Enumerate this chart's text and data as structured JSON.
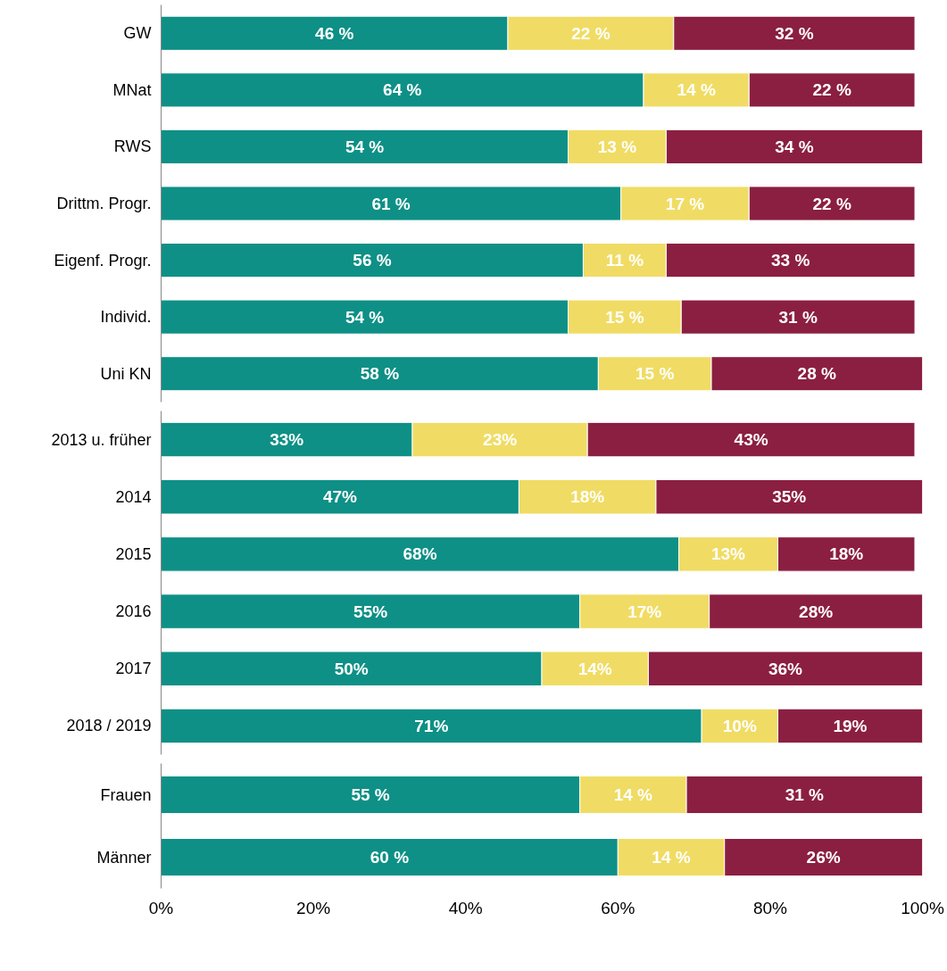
{
  "chart_data": [
    {
      "type": "bar",
      "orientation": "horizontal",
      "stacked": true,
      "tick_labels": "y",
      "xlim": [
        0,
        101
      ],
      "categories": [
        "GW",
        "MNat",
        "RWS",
        "Drittm. Progr.",
        "Eigenf. Progr.",
        "Individ.",
        "Uni KN"
      ],
      "series": [
        {
          "color": "#0e9086",
          "values": [
            46,
            64,
            54,
            61,
            56,
            54,
            58
          ],
          "value_labels": [
            "46 %",
            "64 %",
            "54 %",
            "61 %",
            "56 %",
            "54 %",
            "58 %"
          ]
        },
        {
          "color": "#f0dc64",
          "values": [
            22,
            14,
            13,
            17,
            11,
            15,
            15
          ],
          "value_labels": [
            "22 %",
            "14 %",
            "13 %",
            "17 %",
            "11 %",
            "15 %",
            "15 %"
          ]
        },
        {
          "color": "#8b1f41",
          "values": [
            32,
            22,
            34,
            22,
            33,
            31,
            28
          ],
          "value_labels": [
            "32 %",
            "22 %",
            "34 %",
            "22 %",
            "33 %",
            "31 %",
            "28 %"
          ]
        }
      ]
    },
    {
      "type": "bar",
      "orientation": "horizontal",
      "stacked": true,
      "tick_labels": "y",
      "xlim": [
        0,
        100
      ],
      "categories": [
        "2013 u. früher",
        "2014",
        "2015",
        "2016",
        "2017",
        "2018 / 2019"
      ],
      "series": [
        {
          "color": "#0e9086",
          "values": [
            33,
            47,
            68,
            55,
            50,
            71
          ],
          "value_labels": [
            "33%",
            "47%",
            "68%",
            "55%",
            "50%",
            "71%"
          ]
        },
        {
          "color": "#f0dc64",
          "values": [
            23,
            18,
            13,
            17,
            14,
            10
          ],
          "value_labels": [
            "23%",
            "18%",
            "13%",
            "17%",
            "14%",
            "10%"
          ]
        },
        {
          "color": "#8b1f41",
          "values": [
            43,
            35,
            18,
            28,
            36,
            19
          ],
          "value_labels": [
            "43%",
            "35%",
            "18%",
            "28%",
            "36%",
            "19%"
          ]
        }
      ]
    },
    {
      "type": "bar",
      "orientation": "horizontal",
      "stacked": true,
      "xlim": [
        0,
        100
      ],
      "xticks": [
        {
          "value": 0,
          "label": "0%"
        },
        {
          "value": 20,
          "label": "20%"
        },
        {
          "value": 40,
          "label": "40%"
        },
        {
          "value": 60,
          "label": "60%"
        },
        {
          "value": 80,
          "label": "80%"
        },
        {
          "value": 100,
          "label": "100%"
        }
      ],
      "categories": [
        "Frauen",
        "Männer"
      ],
      "series": [
        {
          "color": "#0e9086",
          "values": [
            55,
            60
          ],
          "value_labels": [
            "55 %",
            "60 %"
          ]
        },
        {
          "color": "#f0dc64",
          "values": [
            14,
            14
          ],
          "value_labels": [
            "14 %",
            "14 %"
          ]
        },
        {
          "color": "#8b1f41",
          "values": [
            31,
            26
          ],
          "value_labels": [
            "31 %",
            "26%"
          ]
        }
      ]
    }
  ]
}
